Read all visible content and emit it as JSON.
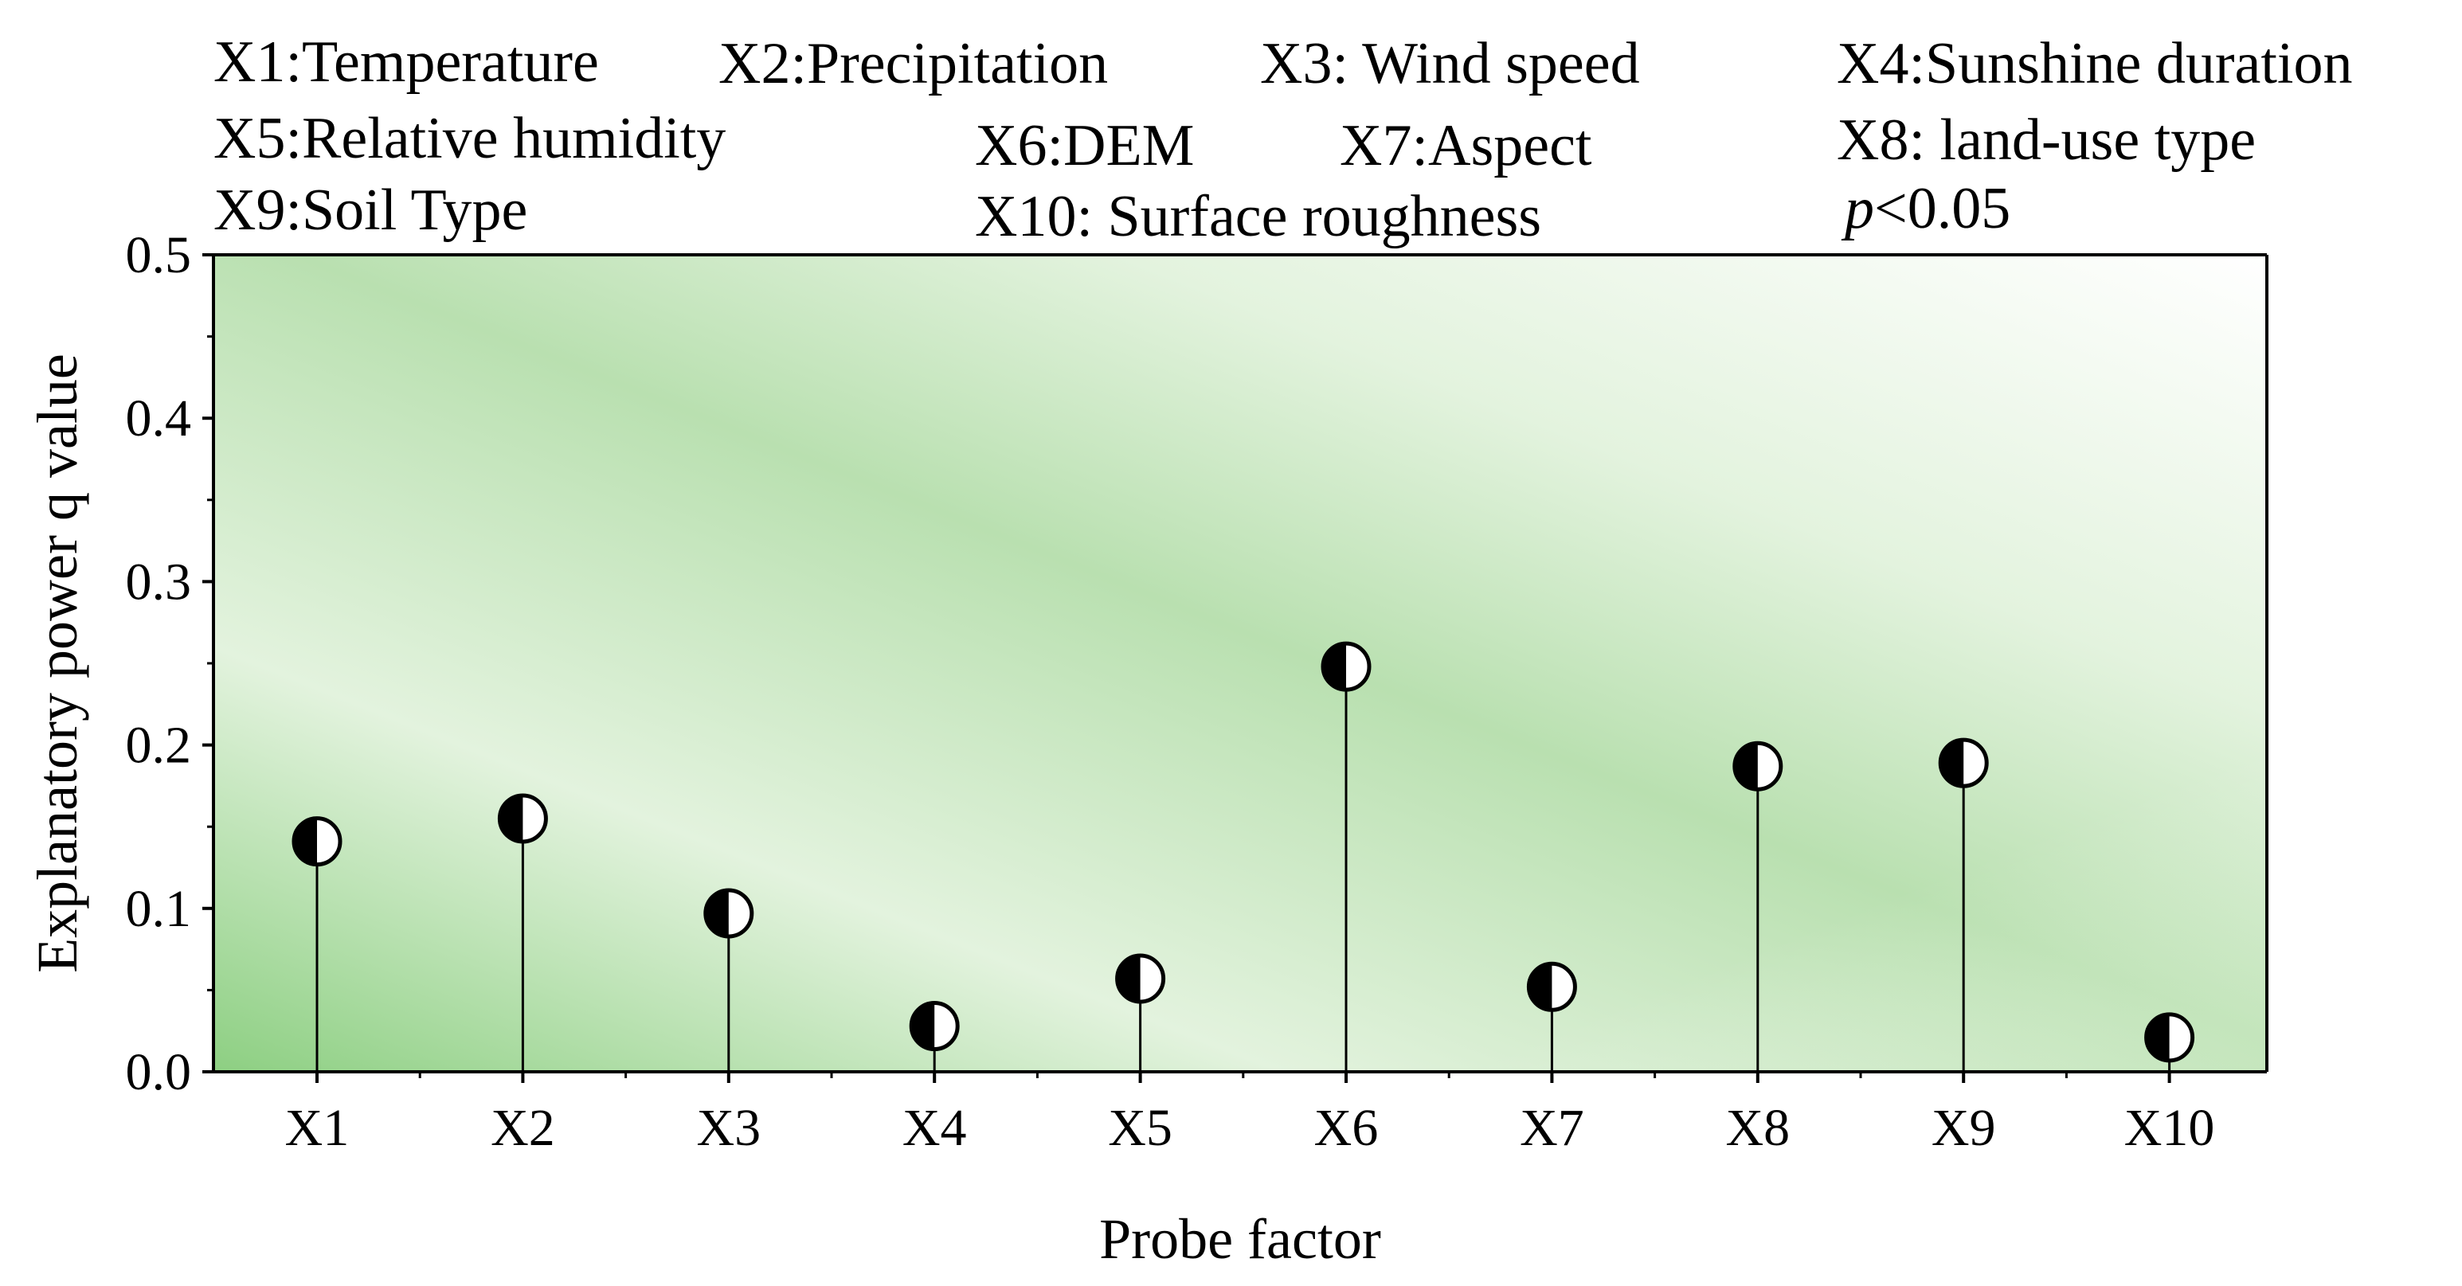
{
  "chart_data": {
    "type": "lollipop",
    "title": "",
    "xlabel": "Probe factor",
    "ylabel": "Explanatory power q value",
    "ylim": [
      0,
      0.5
    ],
    "yticks": [
      "0.0",
      "0.1",
      "0.2",
      "0.3",
      "0.4",
      "0.5"
    ],
    "categories": [
      "X1",
      "X2",
      "X3",
      "X4",
      "X5",
      "X6",
      "X7",
      "X8",
      "X9",
      "X10"
    ],
    "values": [
      0.141,
      0.155,
      0.097,
      0.028,
      0.057,
      0.248,
      0.052,
      0.187,
      0.189,
      0.021
    ],
    "legend": {
      "line1": [
        "X1:Temperature",
        "X2:Precipitation",
        "X3: Wind speed",
        "X4:Sunshine duration"
      ],
      "line2": [
        "X5:Relative humidity",
        "X6:DEM",
        "X7:Aspect",
        "X8: land-use type"
      ],
      "line3": [
        "X9:Soil Type",
        "X10: Surface roughness"
      ],
      "significance_p": "p",
      "significance_rest": "<0.05"
    },
    "colors": {
      "background_dark": "#8dcf82",
      "background_mid": "#b9e0b0",
      "background_light": "#e3f3de",
      "marker_fill": "#000000",
      "marker_half": "#ffffff",
      "axis": "#000000"
    }
  }
}
